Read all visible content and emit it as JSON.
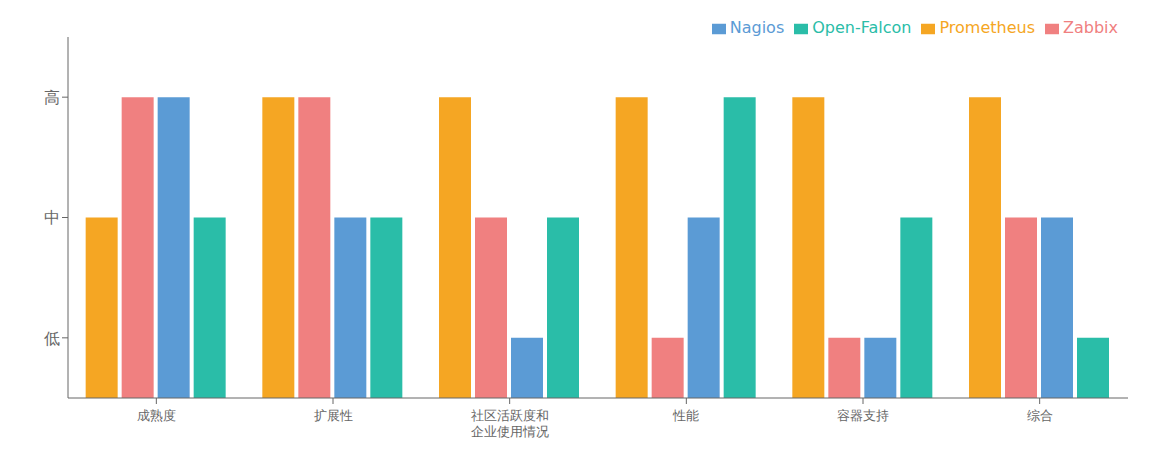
{
  "chart_data": {
    "type": "bar",
    "categories": [
      "成熟度",
      "扩展性",
      "社区活跃度和\n企业使用情况",
      "性能",
      "容器支持",
      "综合"
    ],
    "series": [
      {
        "name": "Prometheus",
        "color": "#F5A623",
        "values": [
          2,
          3,
          3,
          3,
          3,
          3
        ]
      },
      {
        "name": "Zabbix",
        "color": "#F08080",
        "values": [
          3,
          3,
          2,
          1,
          1,
          2
        ]
      },
      {
        "name": "Nagios",
        "color": "#5B9BD5",
        "values": [
          3,
          2,
          1,
          2,
          1,
          2
        ]
      },
      {
        "name": "Open-Falcon",
        "color": "#2ABDA8",
        "values": [
          2,
          2,
          2,
          3,
          2,
          1
        ]
      }
    ],
    "ylim": [
      0.5,
      3.5
    ],
    "yticks": [
      {
        "value": 1,
        "label": "低"
      },
      {
        "value": 2,
        "label": "中"
      },
      {
        "value": 3,
        "label": "高"
      }
    ],
    "grid": false,
    "legend": "upper right"
  }
}
